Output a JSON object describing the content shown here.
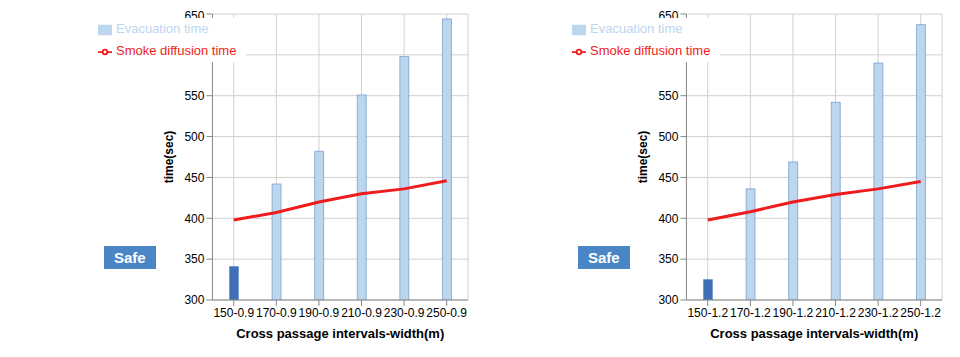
{
  "chart_data": [
    {
      "type": "bar",
      "categories": [
        "150-0.9",
        "170-0.9",
        "190-0.9",
        "210-0.9",
        "230-0.9",
        "250-0.9"
      ],
      "series": [
        {
          "name": "Evacuation time",
          "type": "bar",
          "colors": [
            "#3f6fb5",
            "#bcd6ee",
            "#bcd6ee",
            "#bcd6ee",
            "#bcd6ee",
            "#bcd6ee"
          ],
          "values": [
            341,
            442,
            482,
            551,
            598,
            644
          ]
        },
        {
          "name": "Smoke diffusion time",
          "type": "line",
          "color": "#ee1c1c",
          "marker": "none",
          "values": [
            398,
            407,
            420,
            430,
            436,
            446
          ]
        }
      ],
      "x_label": "Cross passage intervals-width(m)",
      "y_label": "time(sec)",
      "ylim": [
        300,
        650
      ],
      "yticks": [
        300,
        350,
        400,
        450,
        500,
        550,
        600,
        650
      ],
      "grid": true,
      "legend": "upper left",
      "annotations": [
        "Safe"
      ]
    },
    {
      "type": "bar",
      "categories": [
        "150-1.2",
        "170-1.2",
        "190-1.2",
        "210-1.2",
        "230-1.2",
        "250-1.2"
      ],
      "series": [
        {
          "name": "Evacuation time",
          "type": "bar",
          "colors": [
            "#3f6fb5",
            "#bcd6ee",
            "#bcd6ee",
            "#bcd6ee",
            "#bcd6ee",
            "#bcd6ee"
          ],
          "values": [
            325,
            436,
            469,
            542,
            590,
            637
          ]
        },
        {
          "name": "Smoke diffusion time",
          "type": "line",
          "color": "#ee1c1c",
          "marker": "none",
          "values": [
            398,
            408,
            420,
            429,
            436,
            445
          ]
        }
      ],
      "x_label": "Cross passage intervals-width(m)",
      "y_label": "time(sec)",
      "ylim": [
        300,
        650
      ],
      "yticks": [
        300,
        350,
        400,
        450,
        500,
        550,
        600,
        650
      ],
      "grid": true,
      "legend": "upper left",
      "annotations": [
        "Safe"
      ]
    }
  ]
}
